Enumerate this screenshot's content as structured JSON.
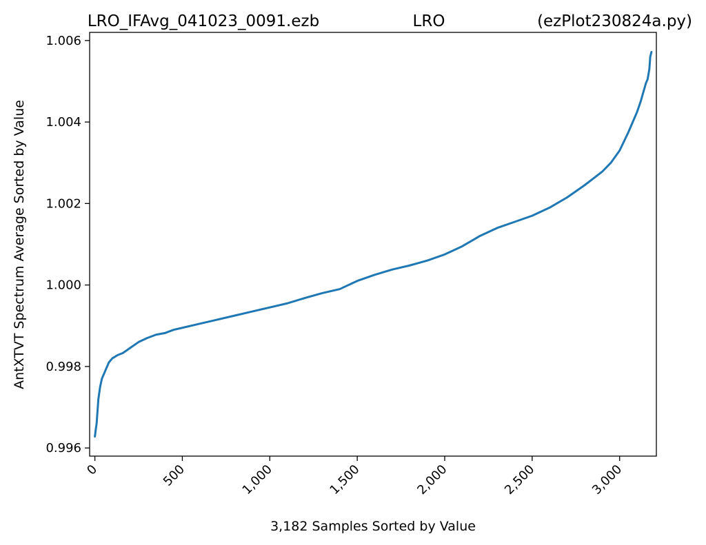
{
  "chart_data": {
    "type": "line",
    "title_left": "LRO_IFAvg_041023_0091.ezb",
    "title_center": "LRO",
    "title_right": "(ezPlot230824a.py)",
    "xlabel": "3,182 Samples Sorted by Value",
    "ylabel": "AntXTVT Spectrum Average Sorted by Value",
    "xlim": [
      -30,
      3210
    ],
    "ylim": [
      0.9958,
      1.0062
    ],
    "x_ticks": [
      0,
      500,
      1000,
      1500,
      2000,
      2500,
      3000
    ],
    "x_tick_labels": [
      "0",
      "500",
      "1,000",
      "1,500",
      "2,000",
      "2,500",
      "3,000"
    ],
    "y_ticks": [
      0.996,
      0.998,
      1.0,
      1.002,
      1.004,
      1.006
    ],
    "y_tick_labels": [
      "0.996",
      "0.998",
      "1.000",
      "1.002",
      "1.004",
      "1.006"
    ],
    "grid": false,
    "line_color": "#1f77b4",
    "series": [
      {
        "x": [
          0,
          5,
          10,
          15,
          20,
          30,
          40,
          50,
          60,
          80,
          100,
          130,
          160,
          200,
          250,
          300,
          350,
          400,
          450,
          500,
          600,
          700,
          800,
          900,
          1000,
          1100,
          1200,
          1300,
          1400,
          1500,
          1600,
          1700,
          1800,
          1900,
          2000,
          2100,
          2200,
          2300,
          2400,
          2500,
          2600,
          2700,
          2800,
          2900,
          2950,
          3000,
          3050,
          3080,
          3100,
          3120,
          3140,
          3150,
          3160,
          3170,
          3175,
          3182
        ],
        "y": [
          0.99628,
          0.99645,
          0.9966,
          0.9969,
          0.9972,
          0.9975,
          0.9977,
          0.9978,
          0.9979,
          0.9981,
          0.9982,
          0.99828,
          0.99833,
          0.99845,
          0.9986,
          0.9987,
          0.99878,
          0.99882,
          0.9989,
          0.99895,
          0.99905,
          0.99915,
          0.99925,
          0.99935,
          0.99945,
          0.99955,
          0.99968,
          0.9998,
          0.9999,
          1.0001,
          1.00025,
          1.00038,
          1.00048,
          1.0006,
          1.00075,
          1.00095,
          1.0012,
          1.0014,
          1.00155,
          1.0017,
          1.0019,
          1.00215,
          1.00245,
          1.00278,
          1.003,
          1.0033,
          1.00375,
          1.00405,
          1.00425,
          1.0045,
          1.0048,
          1.00495,
          1.00505,
          1.0053,
          1.0056,
          1.00572
        ]
      }
    ]
  }
}
